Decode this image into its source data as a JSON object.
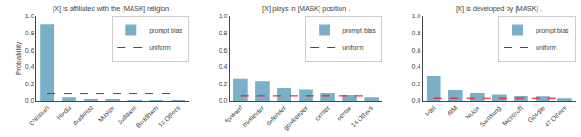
{
  "chart_data": [
    {
      "type": "bar",
      "title": "[X] is affiliated with the [MASK] religion .",
      "categories": [
        "Christian",
        "Hindu",
        "Buddhist",
        "Muslim",
        "Judaism",
        "Buddhism",
        "10 Others"
      ],
      "series": [
        {
          "name": "prompt bias",
          "type": "bar",
          "color": "#7aafc9",
          "values": [
            0.9,
            0.04,
            0.02,
            0.015,
            0.01,
            0.008,
            0.005
          ]
        },
        {
          "name": "uniform",
          "type": "line",
          "color": "red",
          "line_style": "dashed",
          "values": [
            0.08,
            0.08,
            0.08,
            0.08,
            0.08,
            0.08,
            0.08
          ]
        }
      ],
      "ylabel": "Probability",
      "ylim": [
        0,
        1.0
      ],
      "yticks": [
        {
          "value": 0.0,
          "label": "0.0"
        },
        0.2,
        0.4,
        0.6,
        0.8,
        {
          "value": 1.0,
          "label": "1.0"
        }
      ],
      "grid": false,
      "legend": "upper right"
    },
    {
      "type": "bar",
      "title": "[X] plays in [MASK] position .",
      "categories": [
        "forward",
        "midfielder",
        "defender",
        "goalkeeper",
        "center",
        "centre",
        "14 Others"
      ],
      "series": [
        {
          "name": "prompt bias",
          "type": "bar",
          "color": "#7aafc9",
          "values": [
            0.26,
            0.235,
            0.15,
            0.135,
            0.09,
            0.065,
            0.04
          ]
        },
        {
          "name": "uniform",
          "type": "line",
          "color": "red",
          "line_style": "dashed",
          "values": [
            0.055,
            0.055,
            0.055,
            0.055,
            0.055,
            0.055,
            0.055
          ]
        }
      ],
      "ylim": [
        0,
        1.0
      ],
      "yticks": [
        {
          "value": 0.0,
          "label": "0.0"
        },
        0.2,
        0.4,
        0.6,
        0.8,
        {
          "value": 1.0,
          "label": "1.0"
        }
      ],
      "grid": false,
      "legend": "upper right"
    },
    {
      "type": "bar",
      "title": "[X] is developed by [MASK] .",
      "categories": [
        "Intel",
        "IBM",
        "Nokia",
        "Samsung",
        "Microsoft",
        "Google",
        "47 Others"
      ],
      "series": [
        {
          "name": "prompt bias",
          "type": "bar",
          "color": "#7aafc9",
          "values": [
            0.29,
            0.13,
            0.095,
            0.07,
            0.055,
            0.05,
            0.03
          ]
        },
        {
          "name": "uniform",
          "type": "line",
          "color": "red",
          "line_style": "dashed",
          "values": [
            0.03,
            0.03,
            0.03,
            0.03,
            0.03,
            0.03,
            0.03
          ]
        }
      ],
      "ylim": [
        0,
        1.0
      ],
      "yticks": [
        {
          "value": 0.0,
          "label": "0.0"
        },
        0.2,
        0.4,
        0.6,
        0.8,
        {
          "value": 1.0,
          "label": "1.0"
        }
      ],
      "grid": false,
      "legend": "upper right"
    }
  ]
}
